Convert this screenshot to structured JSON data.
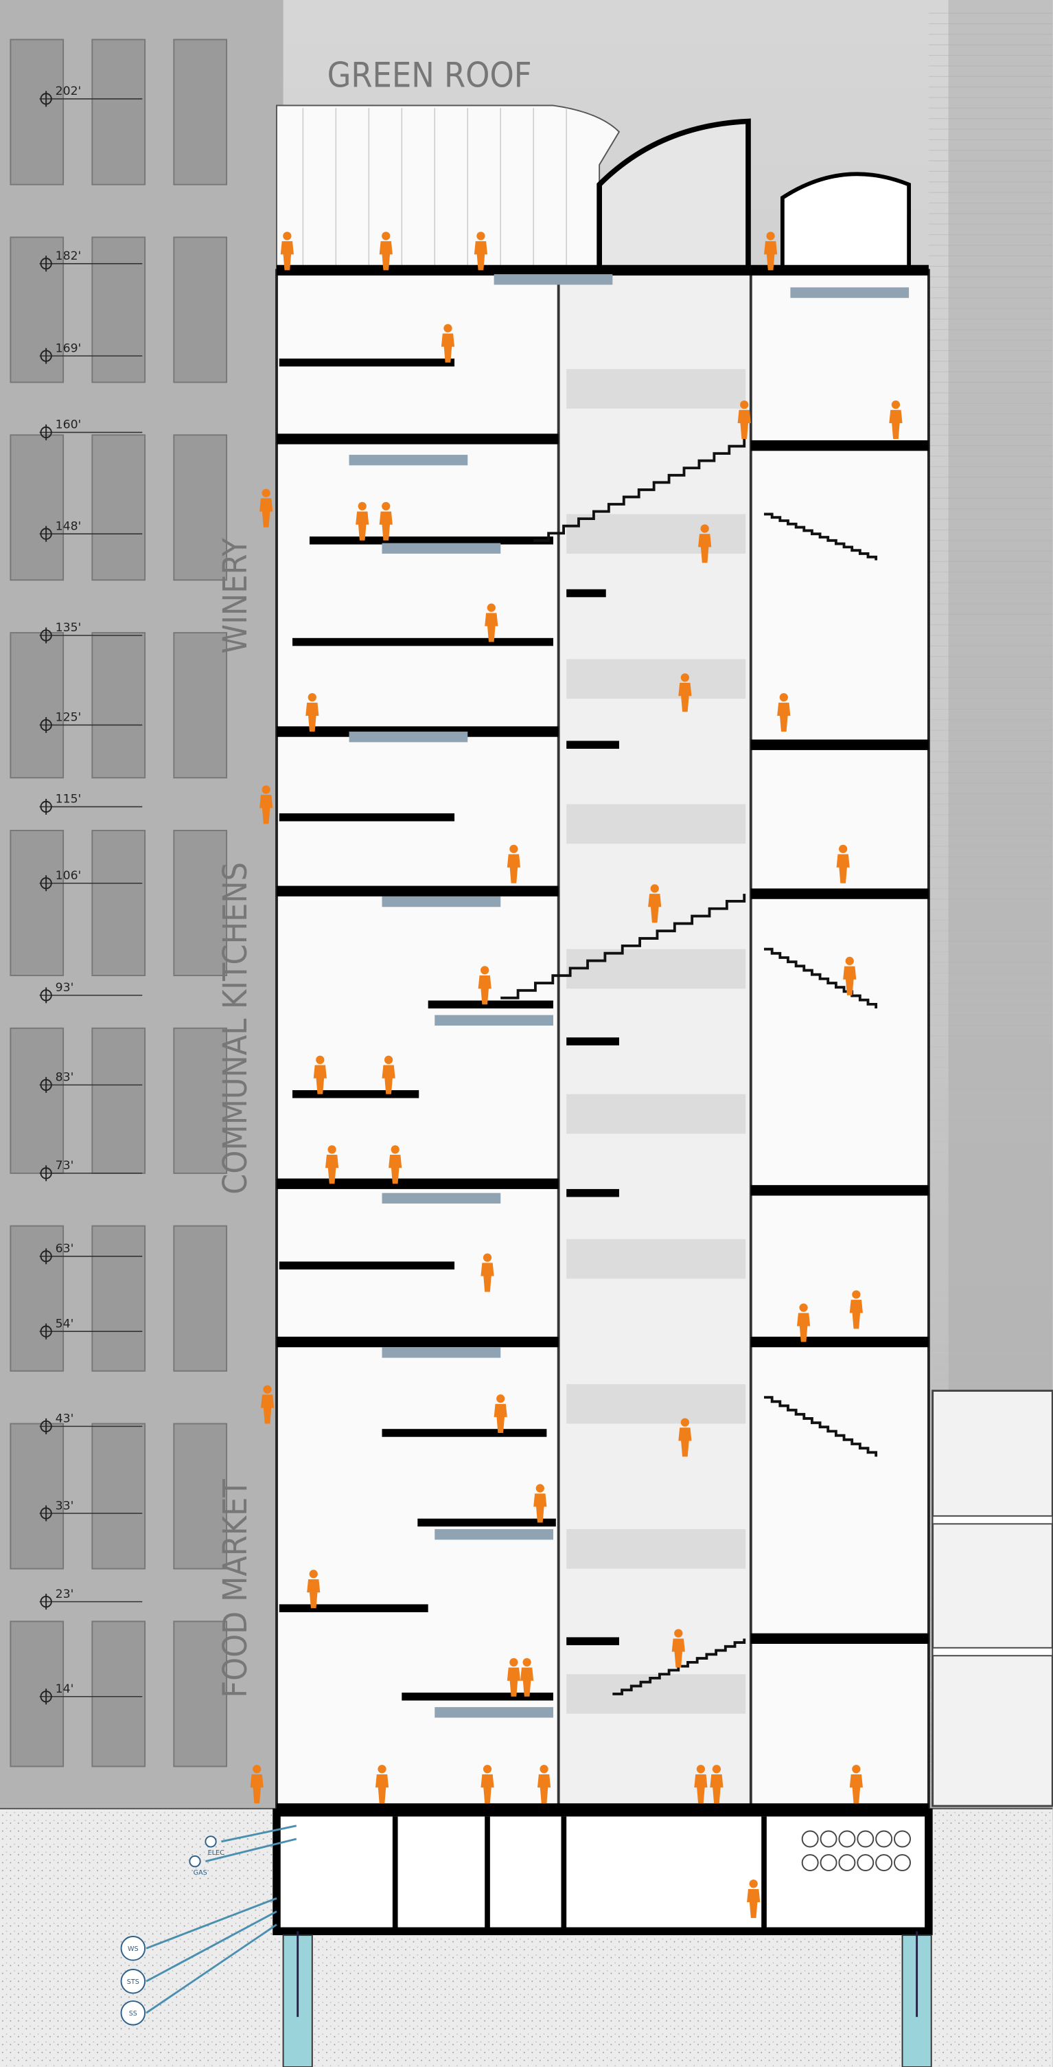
{
  "header": {
    "title": "GREEN ROOF"
  },
  "zones": [
    "WINERY",
    "COMMUNAL KITCHENS",
    "FOOD MARKET"
  ],
  "elevations": [
    "202'",
    "182'",
    "169'",
    "160'",
    "148'",
    "135'",
    "125'",
    "115'",
    "106'",
    "93'",
    "83'",
    "73'",
    "63'",
    "54'",
    "43'",
    "33'",
    "23'",
    "14'"
  ],
  "utilities": [
    "ELEC",
    "GAS",
    "WS",
    "STS",
    "SS"
  ]
}
